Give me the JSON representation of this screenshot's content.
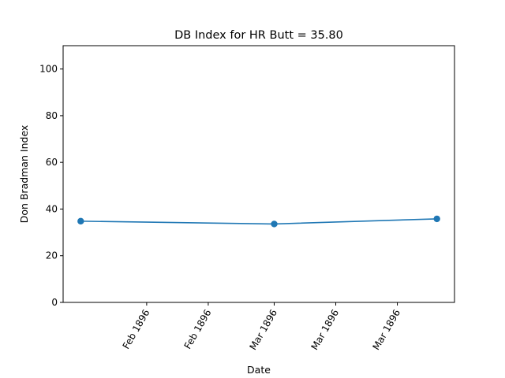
{
  "chart_data": {
    "type": "line",
    "title": "DB Index for HR Butt = 35.80",
    "xlabel": "Date",
    "ylabel": "Don Bradman Index",
    "ylim": [
      0,
      110
    ],
    "yticks": [
      0,
      20,
      40,
      60,
      80,
      100
    ],
    "xlim": [
      "1896-01-13",
      "1896-04-11"
    ],
    "xtick_labels": [
      "Feb 1896",
      "Feb 1896",
      "Mar 1896",
      "Mar 1896",
      "Mar 1896"
    ],
    "xtick_dates": [
      "1896-02-01",
      "1896-02-15",
      "1896-03-01",
      "1896-03-15",
      "1896-03-29"
    ],
    "series": [
      {
        "color": "#1f77b4",
        "marker": "circle",
        "x": [
          "1896-01-17",
          "1896-03-01",
          "1896-04-07"
        ],
        "values": [
          34.8,
          33.6,
          35.8
        ]
      }
    ],
    "grid": false,
    "legend": "none"
  }
}
